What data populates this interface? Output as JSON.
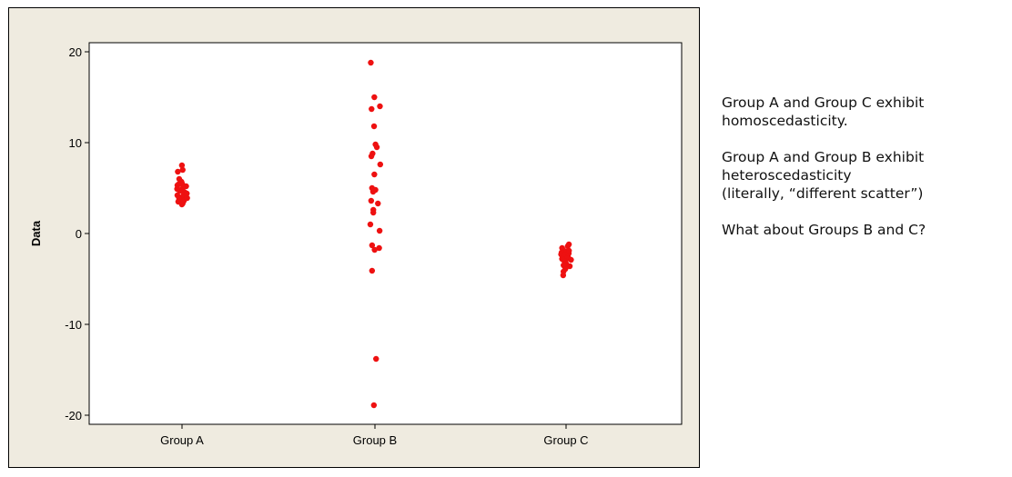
{
  "chart_data": {
    "type": "scatter",
    "ylabel": "Data",
    "xlabel": "",
    "ylim": [
      -21,
      21
    ],
    "y_ticks": [
      20,
      10,
      0,
      -10,
      -20
    ],
    "categories": [
      "Group A",
      "Group B",
      "Group C"
    ],
    "marker_color": "#ee1111",
    "series": [
      {
        "values": [
          7.5,
          7.0,
          6.8,
          6.0,
          5.7,
          5.5,
          5.3,
          5.2,
          5.0,
          4.8,
          4.7,
          4.5,
          4.3,
          4.2,
          4.0,
          3.8,
          3.6,
          3.5,
          3.3,
          3.2,
          5.4,
          4.9,
          4.4,
          3.9
        ]
      },
      {
        "values": [
          18.8,
          15.0,
          14.0,
          13.7,
          11.8,
          9.8,
          9.5,
          8.8,
          8.5,
          7.6,
          6.5,
          5.0,
          4.8,
          4.6,
          3.6,
          3.3,
          2.6,
          2.3,
          1.0,
          0.3,
          -1.3,
          -1.6,
          -1.8,
          -4.1,
          -13.8,
          -18.9
        ]
      },
      {
        "values": [
          -1.2,
          -1.4,
          -1.6,
          -1.8,
          -2.0,
          -2.1,
          -2.3,
          -2.4,
          -2.6,
          -2.7,
          -2.9,
          -3.0,
          -3.1,
          -3.3,
          -3.4,
          -3.6,
          -3.7,
          -3.9,
          -4.2,
          -4.6,
          -2.2,
          -2.8,
          -3.5,
          -1.9
        ]
      }
    ]
  },
  "notes": {
    "line1": "Group A and Group C exhibit",
    "line2": "homoscedasticity.",
    "line3": "Group A and Group B exhibit",
    "line4": "heteroscedasticity",
    "line5": "(literally, “different scatter”)",
    "line6": "What about Groups B and C?"
  }
}
